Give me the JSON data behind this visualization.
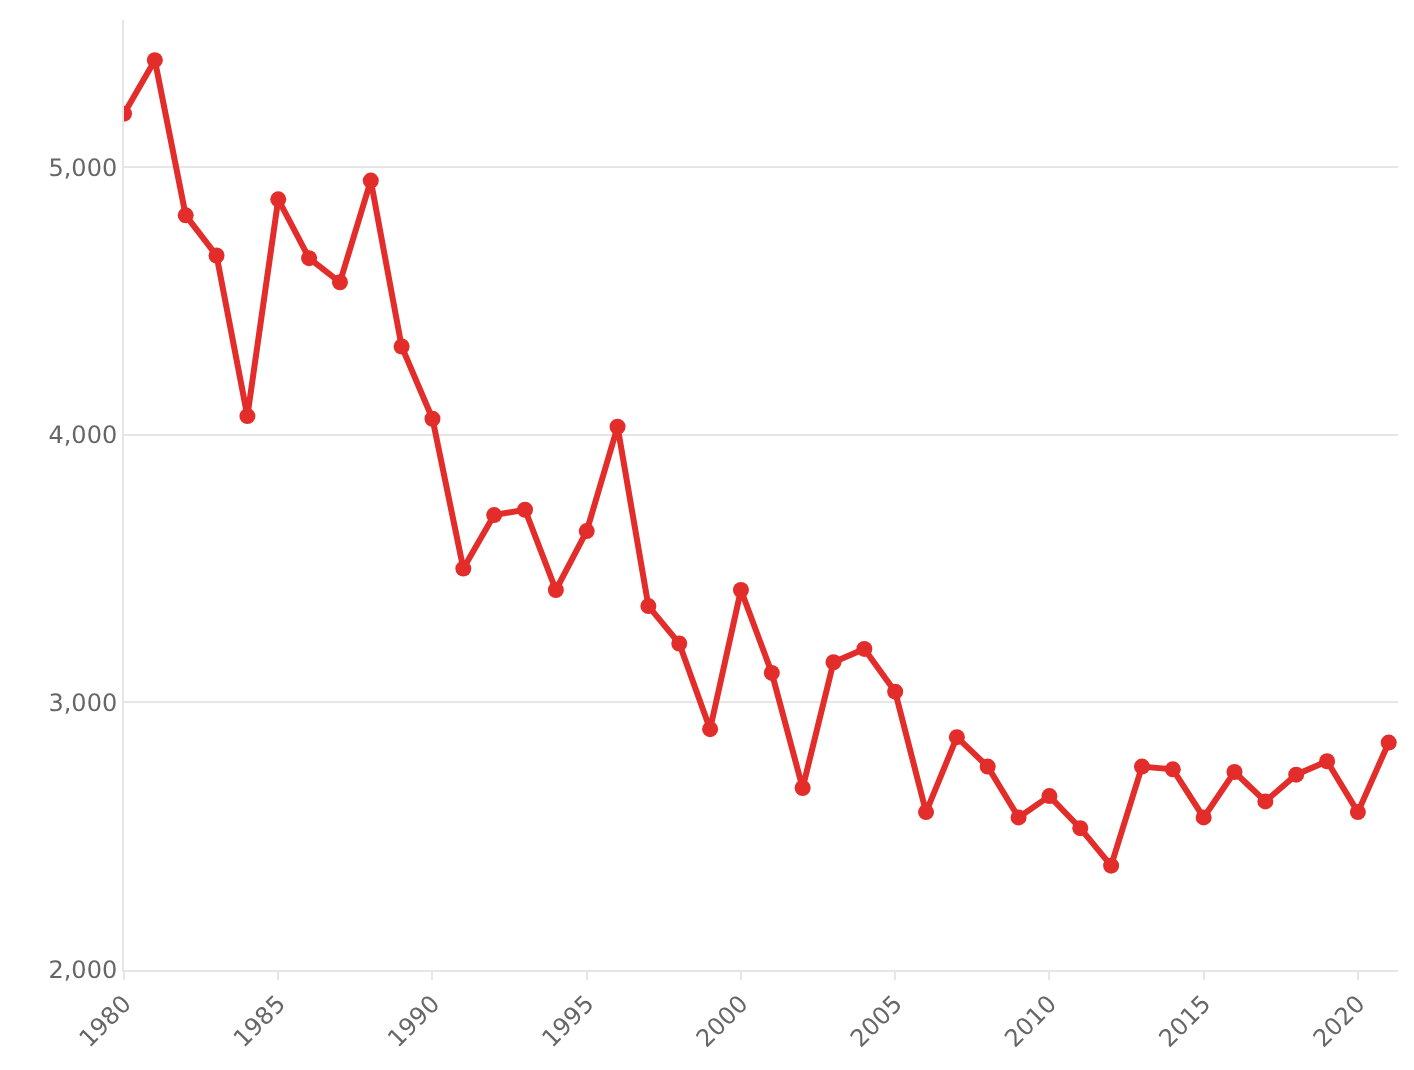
{
  "chart_data": {
    "type": "line",
    "x": [
      1980,
      1981,
      1982,
      1983,
      1984,
      1985,
      1986,
      1987,
      1988,
      1989,
      1990,
      1991,
      1992,
      1993,
      1994,
      1995,
      1996,
      1997,
      1998,
      1999,
      2000,
      2001,
      2002,
      2003,
      2004,
      2005,
      2006,
      2007,
      2008,
      2009,
      2010,
      2011,
      2012,
      2013,
      2014,
      2015,
      2016,
      2017,
      2018,
      2019,
      2020,
      2021
    ],
    "series": [
      {
        "color": "#e32d2a",
        "values": [
          5200,
          5400,
          4820,
          4670,
          4070,
          4880,
          4660,
          4570,
          4950,
          4330,
          4060,
          3500,
          3700,
          3720,
          3420,
          3640,
          4030,
          3360,
          3220,
          2900,
          3420,
          3110,
          2680,
          3150,
          3200,
          3040,
          2590,
          2870,
          2760,
          2570,
          2650,
          2530,
          2390,
          2760,
          2750,
          2570,
          2740,
          2630,
          2730,
          2780,
          2590,
          2850
        ]
      }
    ],
    "xlim": [
      1980,
      2021.3
    ],
    "xticks": [
      1980,
      1985,
      1990,
      1995,
      2000,
      2005,
      2010,
      2015,
      2020
    ],
    "ylim": [
      2000,
      5550
    ],
    "yticks": [
      {
        "value": 2000,
        "label": "2,000"
      },
      {
        "value": 3000,
        "label": "3,000"
      },
      {
        "value": 4000,
        "label": "4,000"
      },
      {
        "value": 5000,
        "label": "5,000"
      }
    ],
    "grid": "y",
    "marker": "circle",
    "line_style": "solid"
  }
}
